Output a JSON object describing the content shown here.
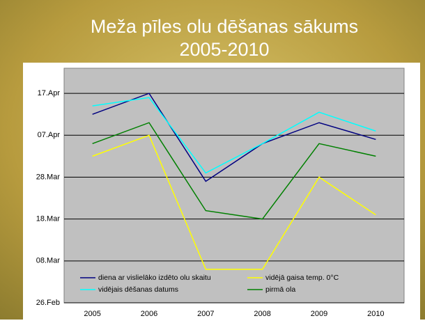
{
  "chart_data": {
    "type": "line",
    "title": "Meža pīles olu dēšanas sākums",
    "subtitle": "2005-2010",
    "categories": [
      "2005",
      "2006",
      "2007",
      "2008",
      "2009",
      "2010"
    ],
    "series": [
      {
        "name": "diena ar vislielāko izdēto olu skaitu",
        "color": "#000080",
        "values": [
          102,
          107,
          86,
          95,
          100,
          96
        ]
      },
      {
        "name": "vidējā gaisa temp. 0°C",
        "color": "#ffff00",
        "values": [
          92,
          97,
          65,
          65,
          87,
          78
        ]
      },
      {
        "name": "vidējais dēšanas datums",
        "color": "#00ffff",
        "values": [
          104,
          106,
          88,
          95,
          102.5,
          98
        ]
      },
      {
        "name": "pirmā ola",
        "color": "#008000",
        "values": [
          95,
          100,
          79,
          77,
          95,
          92
        ]
      }
    ],
    "ylim": [
      57,
      113
    ],
    "yticks": [
      {
        "value": 57,
        "label": "26.Feb"
      },
      {
        "value": 67,
        "label": "08.Mar"
      },
      {
        "value": 77,
        "label": "18.Mar"
      },
      {
        "value": 87,
        "label": "28.Mar"
      },
      {
        "value": 97,
        "label": "07.Apr"
      },
      {
        "value": 107,
        "label": "17.Apr"
      }
    ],
    "grid": true
  }
}
